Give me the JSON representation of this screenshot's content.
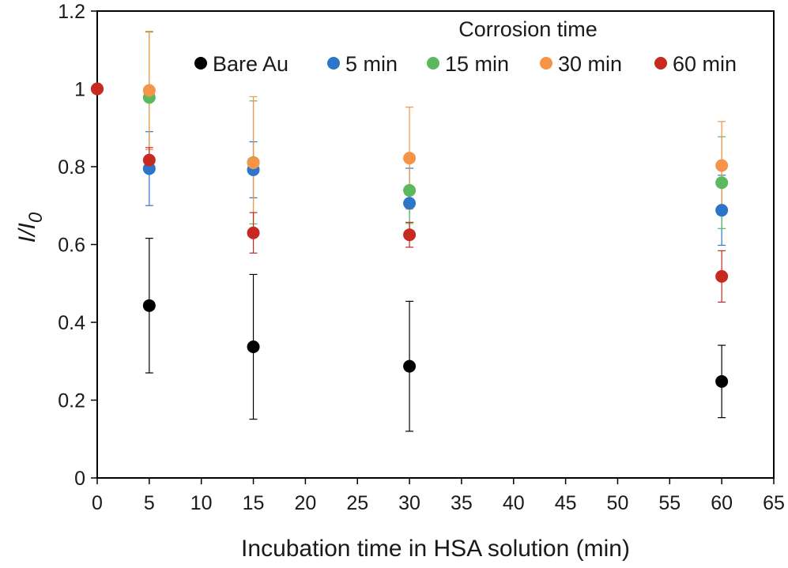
{
  "chart_data": {
    "type": "scatter",
    "xlabel": "Incubation time in HSA solution (min)",
    "ylabel": "I/I0",
    "ylabel_main": "I/I",
    "ylabel_sub": "0",
    "xlim": [
      0,
      65
    ],
    "ylim": [
      0,
      1.2
    ],
    "xticks": [
      "0",
      "5",
      "10",
      "15",
      "20",
      "25",
      "30",
      "35",
      "40",
      "45",
      "50",
      "55",
      "60",
      "65"
    ],
    "yticks": [
      "0",
      "0.2",
      "0.4",
      "0.6",
      "0.8",
      "1",
      "1.2"
    ],
    "grid": false,
    "legend": {
      "title": "Corrosion time",
      "placement": "top-right"
    },
    "series": [
      {
        "name": "Bare Au",
        "color": "#000000",
        "x": [
          0,
          5,
          15,
          30,
          60
        ],
        "y": [
          1.0,
          0.443,
          0.337,
          0.287,
          0.248
        ],
        "err": [
          0,
          0.173,
          0.186,
          0.167,
          0.093
        ]
      },
      {
        "name": "5 min",
        "color": "#2e75c9",
        "x": [
          0,
          5,
          15,
          30,
          60
        ],
        "y": [
          1.0,
          0.795,
          0.792,
          0.706,
          0.688
        ],
        "err": [
          0,
          0.095,
          0.072,
          0.09,
          0.09
        ]
      },
      {
        "name": "15 min",
        "color": "#5cb85c",
        "x": [
          0,
          5,
          15,
          30,
          60
        ],
        "y": [
          1.0,
          0.978,
          0.811,
          0.739,
          0.759
        ],
        "err": [
          0,
          0.168,
          0.158,
          0.085,
          0.118
        ]
      },
      {
        "name": "30 min",
        "color": "#f39449",
        "x": [
          0,
          5,
          15,
          30,
          60
        ],
        "y": [
          1.0,
          0.996,
          0.81,
          0.822,
          0.803
        ],
        "err": [
          0,
          0.152,
          0.17,
          0.131,
          0.113
        ]
      },
      {
        "name": "60 min",
        "color": "#c62a20",
        "x": [
          0,
          5,
          15,
          30,
          60
        ],
        "y": [
          1.0,
          0.817,
          0.63,
          0.625,
          0.518
        ],
        "err": [
          0,
          0.032,
          0.052,
          0.032,
          0.066
        ]
      }
    ]
  }
}
